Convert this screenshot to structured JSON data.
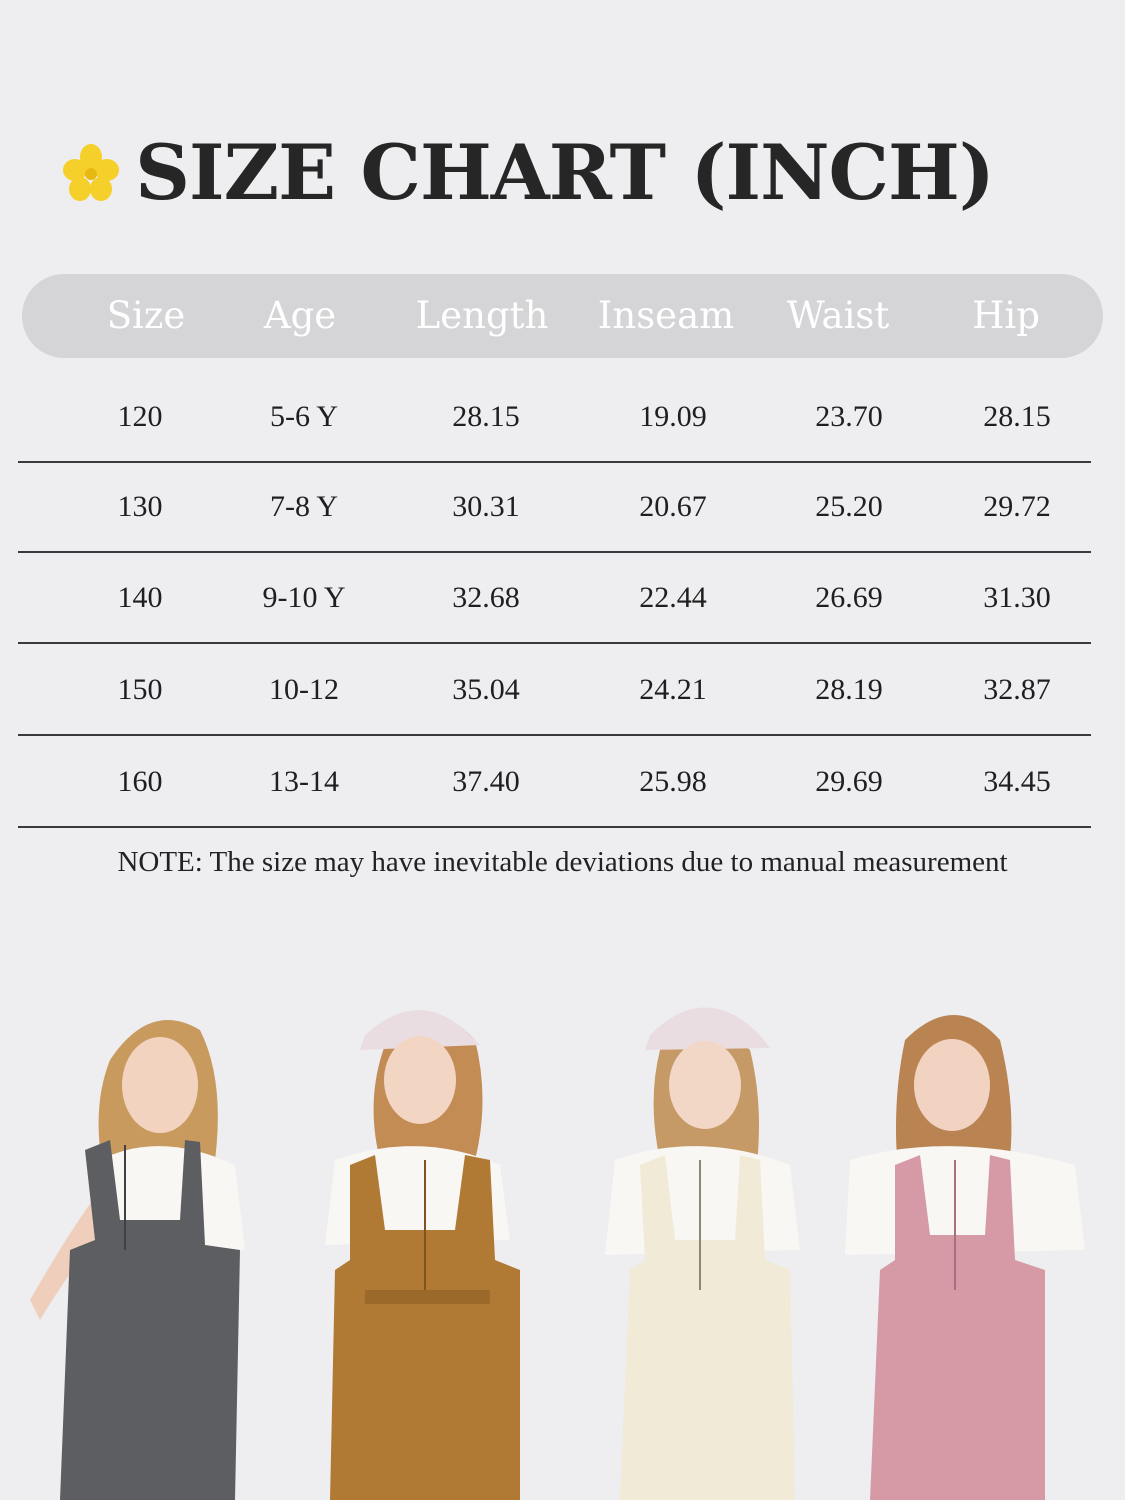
{
  "title": "SIZE CHART (INCH)",
  "columns": [
    "Size",
    "Age",
    "Length",
    "Inseam",
    "Waist",
    "Hip"
  ],
  "rows": [
    [
      "120",
      "5-6 Y",
      "28.15",
      "19.09",
      "23.70",
      "28.15"
    ],
    [
      "130",
      "7-8 Y",
      "30.31",
      "20.67",
      "25.20",
      "29.72"
    ],
    [
      "140",
      "9-10 Y",
      "32.68",
      "22.44",
      "26.69",
      "31.30"
    ],
    [
      "150",
      "10-12",
      "35.04",
      "24.21",
      "28.19",
      "32.87"
    ],
    [
      "160",
      "13-14",
      "37.40",
      "25.98",
      "29.69",
      "34.45"
    ]
  ],
  "note": "NOTE: The size may have inevitable deviations due to manual measurement",
  "colors": {
    "background": "#eeedf0",
    "header_pill": "#d5d4d7",
    "flower": "#f5d02a",
    "overall_colors": [
      "#5c5e61",
      "#b07a34",
      "#f1ead6",
      "#d69aa6"
    ]
  },
  "icons": {
    "title_icon": "flower-icon"
  }
}
